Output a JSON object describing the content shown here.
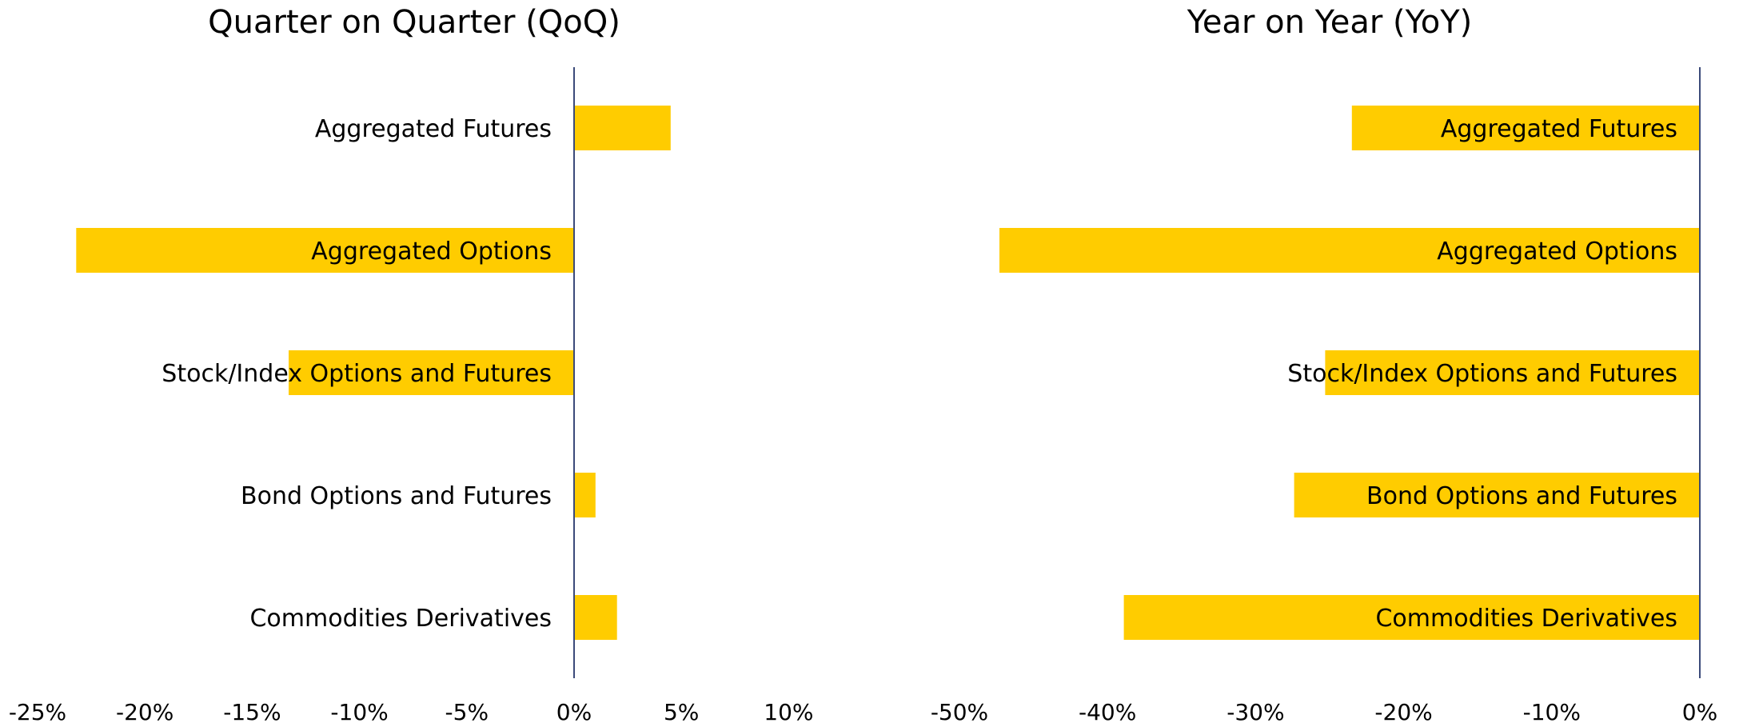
{
  "colors": {
    "bar": "#FFCC00",
    "axis": "#3B4A7A",
    "text": "#000000"
  },
  "chart_data": [
    {
      "type": "bar",
      "orientation": "horizontal",
      "title": "Quarter on Quarter (QoQ)",
      "categories": [
        "Aggregated Futures",
        "Aggregated Options",
        "Stock/Index Options and Futures",
        "Bond Options and Futures",
        "Commodities Derivatives"
      ],
      "values": [
        4.5,
        -23.2,
        -13.3,
        1.0,
        2.0
      ],
      "unit": "%",
      "xlim": [
        -25,
        10
      ],
      "ticks": [
        -25,
        -20,
        -15,
        -10,
        -5,
        0,
        5,
        10
      ],
      "tick_labels": [
        "-25%",
        "-20%",
        "-15%",
        "-10%",
        "-5%",
        "0%",
        "5%",
        "10%"
      ],
      "grid": false,
      "legend": "none"
    },
    {
      "type": "bar",
      "orientation": "horizontal",
      "title": "Year on Year (YoY)",
      "categories": [
        "Aggregated Futures",
        "Aggregated Options",
        "Stock/Index Options and Futures",
        "Bond Options and Futures",
        "Commodities Derivatives"
      ],
      "values": [
        -23.5,
        -47.3,
        -25.3,
        -27.4,
        -38.9
      ],
      "unit": "%",
      "xlim": [
        -50,
        0
      ],
      "ticks": [
        -50,
        -40,
        -30,
        -20,
        -10,
        0
      ],
      "tick_labels": [
        "-50%",
        "-40%",
        "-30%",
        "-20%",
        "-10%",
        "0%"
      ],
      "grid": false,
      "legend": "none"
    }
  ]
}
